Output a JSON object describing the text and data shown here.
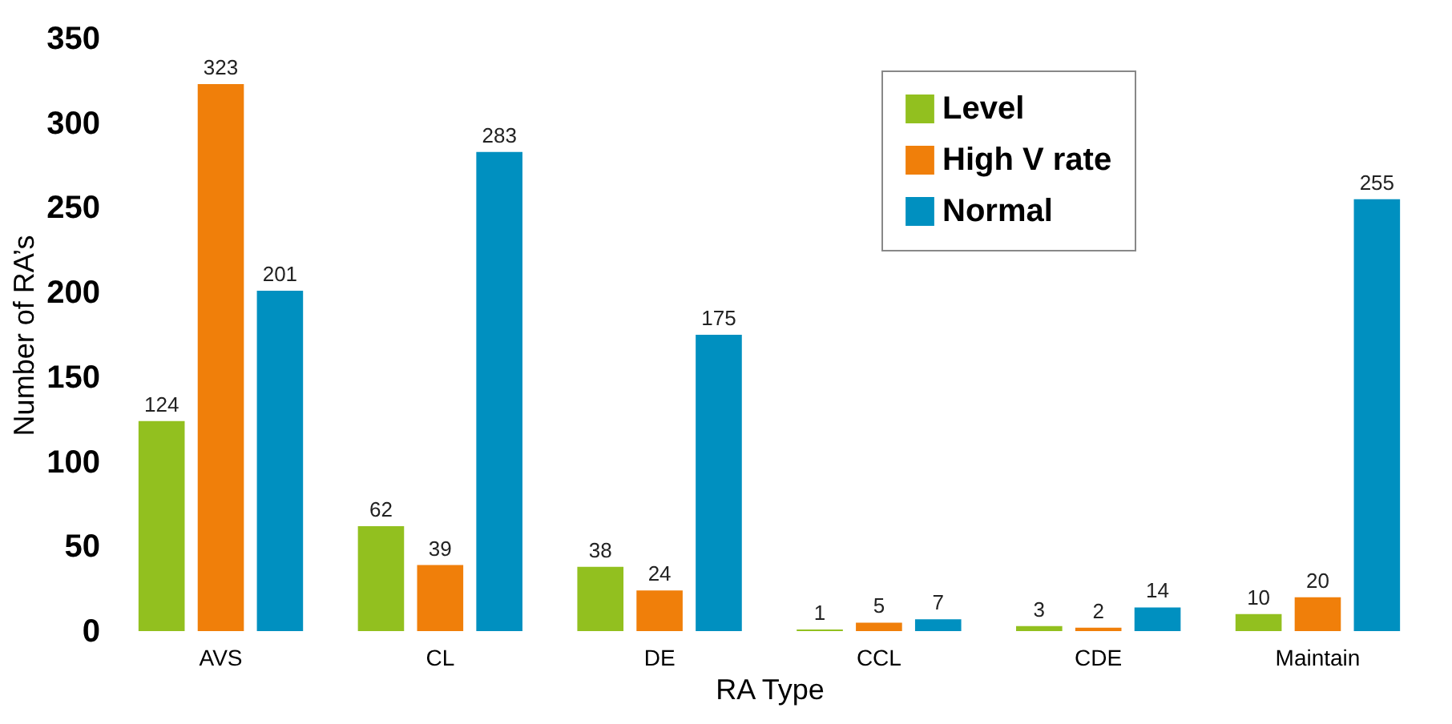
{
  "chart_data": {
    "type": "bar",
    "xlabel": "RA Type",
    "ylabel": "Number of RA’s",
    "categories": [
      "AVS",
      "CL",
      "DE",
      "CCL",
      "CDE",
      "Maintain"
    ],
    "series": [
      {
        "name": "Level",
        "color": "#92c01f",
        "values": [
          124,
          62,
          38,
          1,
          3,
          10
        ]
      },
      {
        "name": "High V rate",
        "color": "#f07f0a",
        "values": [
          323,
          39,
          24,
          5,
          2,
          20
        ]
      },
      {
        "name": "Normal",
        "color": "#0090c0",
        "values": [
          201,
          283,
          175,
          7,
          14,
          255
        ]
      }
    ],
    "ylim": [
      0,
      350
    ],
    "yticks": [
      0,
      50,
      100,
      150,
      200,
      250,
      300,
      350
    ],
    "grid": false,
    "legend": "top right",
    "data_labels": true
  }
}
